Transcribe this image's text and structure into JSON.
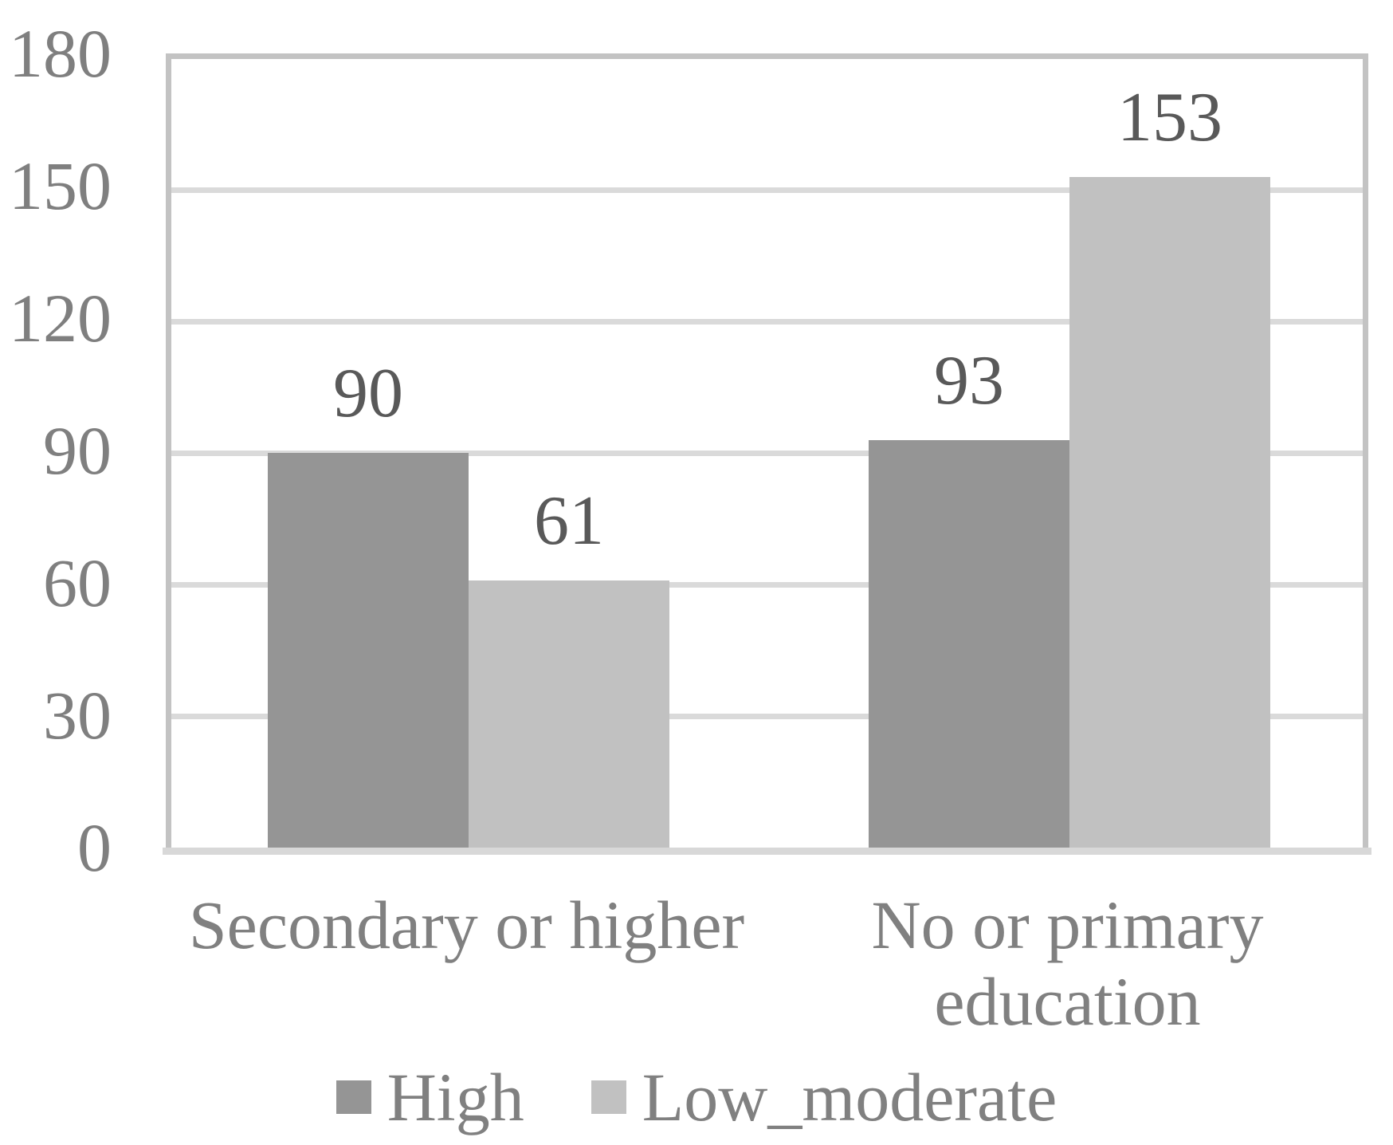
{
  "chart_data": {
    "type": "bar",
    "title": "",
    "xlabel": "",
    "ylabel": "",
    "categories": [
      "Secondary or higher",
      "No or primary education"
    ],
    "series": [
      {
        "name": "High",
        "color": "#959595",
        "values": [
          90,
          93
        ]
      },
      {
        "name": "Low_moderate",
        "color": "#c1c1c1",
        "values": [
          61,
          153
        ]
      }
    ],
    "y_ticks": [
      0,
      30,
      60,
      90,
      120,
      150,
      180
    ],
    "ylim": [
      0,
      180
    ],
    "grid": true,
    "gridline_color": "#dadada",
    "plot_border_color": "#c3c3c3",
    "legend_position": "bottom",
    "data_labels": true
  },
  "x_axis": {
    "cat1_line1": "Secondary or higher",
    "cat2_line1": "No or primary",
    "cat2_line2": "education"
  }
}
